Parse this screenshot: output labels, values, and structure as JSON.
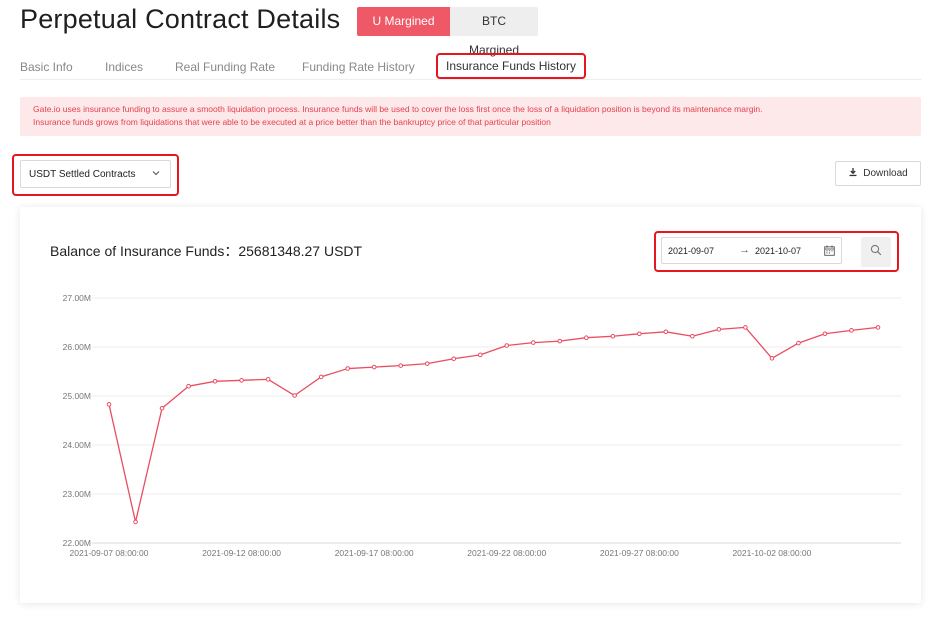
{
  "header": {
    "title": "Perpetual Contract Details",
    "toggle": {
      "active": "U Margined",
      "inactive": "BTC Margined"
    }
  },
  "tabs": [
    {
      "label": "Basic Info"
    },
    {
      "label": "Indices"
    },
    {
      "label": "Real Funding Rate"
    },
    {
      "label": "Funding Rate History"
    },
    {
      "label": "Insurance Funds History",
      "selected": true
    }
  ],
  "notice": {
    "line1": "Gate.io uses insurance funding to assure a smooth liquidation process. Insurance funds will be used to cover the loss first once the loss of a liquidation position is beyond its maintenance margin.",
    "line2": "Insurance funds grows from liquidations that were able to be executed at a price better than the bankruptcy price of that particular position"
  },
  "filters": {
    "contract_type": "USDT Settled Contracts",
    "download_label": "Download"
  },
  "balance": {
    "label": "Balance of Insurance Funds：",
    "value": "25681348.27 USDT"
  },
  "date_range": {
    "start": "2021-09-07",
    "end": "2021-10-07"
  },
  "colors": {
    "accent": "#ef5866",
    "line": "#e94d62",
    "highlight_border": "#e8141f",
    "notice_bg": "#fde8ea"
  },
  "icons": {
    "chevron": "chevron-down-icon",
    "download": "download-icon",
    "calendar": "calendar-icon",
    "search": "search-icon"
  },
  "chart_data": {
    "type": "line",
    "title": "",
    "xlabel": "",
    "ylabel": "",
    "ylim": [
      22.0,
      27.0
    ],
    "grid": "horizontal",
    "ytick_labels": [
      "22.00M",
      "23.00M",
      "24.00M",
      "25.00M",
      "26.00M",
      "27.00M"
    ],
    "yticks": [
      22,
      23,
      24,
      25,
      26,
      27
    ],
    "xtick_labels": [
      "2021-09-07 08:00:00",
      "2021-09-12 08:00:00",
      "2021-09-17 08:00:00",
      "2021-09-22 08:00:00",
      "2021-09-27 08:00:00",
      "2021-10-02 08:00:00"
    ],
    "series": [
      {
        "values": [
          24.83,
          22.43,
          24.75,
          25.2,
          25.3,
          25.32,
          25.34,
          25.01,
          25.39,
          25.56,
          25.59,
          25.62,
          25.66,
          25.76,
          25.84,
          26.03,
          26.09,
          26.12,
          26.19,
          26.22,
          26.27,
          26.31,
          26.22,
          26.36,
          26.4,
          25.77,
          26.08,
          26.27,
          26.34,
          26.4
        ]
      }
    ]
  }
}
